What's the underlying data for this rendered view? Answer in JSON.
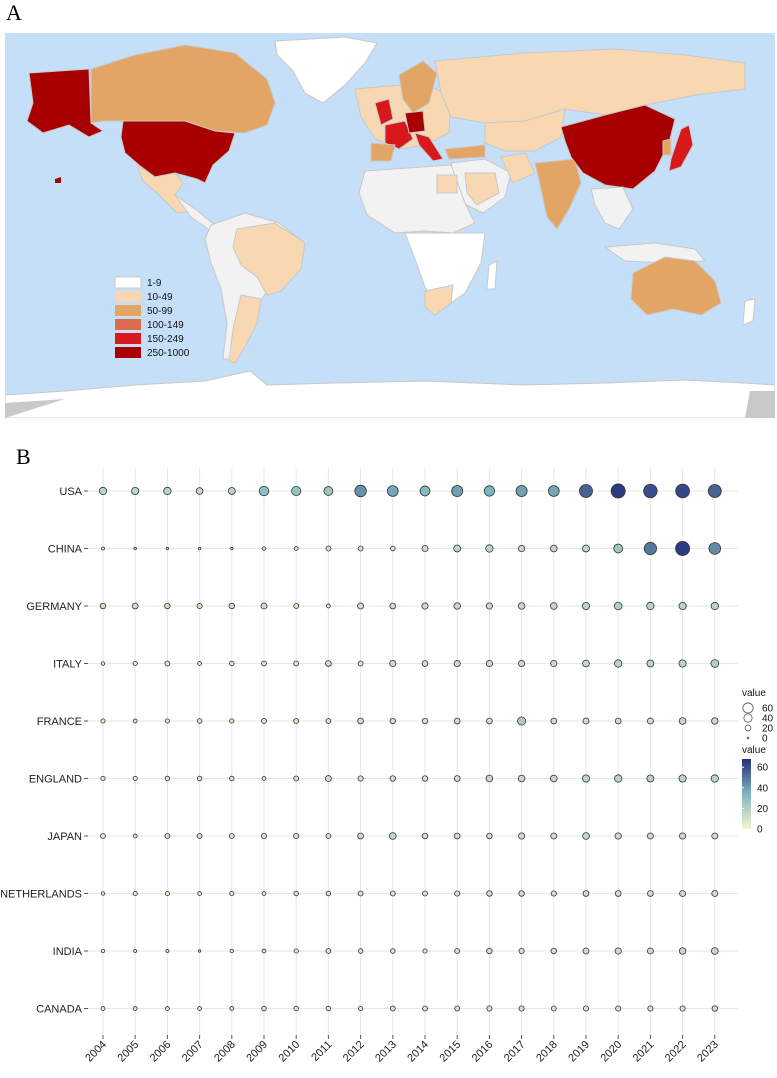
{
  "panels": {
    "a": "A",
    "b": "B"
  },
  "map": {
    "ocean_color": "#c4dff7",
    "no_data_color": "#f2f2f2",
    "border_color": "#c8c8c8",
    "antarctica_color": "#c9c9c9",
    "legend": [
      {
        "label": "1-9",
        "color": "#ffffff"
      },
      {
        "label": "10-49",
        "color": "#f7d8b2"
      },
      {
        "label": "50-99",
        "color": "#e3a566"
      },
      {
        "label": "100-149",
        "color": "#db6a4f"
      },
      {
        "label": "150-249",
        "color": "#d7191c"
      },
      {
        "label": "250-1000",
        "color": "#a80000"
      }
    ]
  },
  "chart_data": {
    "type": "scatter",
    "x": [
      "2004",
      "2005",
      "2006",
      "2007",
      "2008",
      "2009",
      "2010",
      "2011",
      "2012",
      "2013",
      "2014",
      "2015",
      "2016",
      "2017",
      "2018",
      "2019",
      "2020",
      "2021",
      "2022",
      "2023"
    ],
    "categories": [
      "USA",
      "CHINA",
      "GERMANY",
      "ITALY",
      "FRANCE",
      "ENGLAND",
      "JAPAN",
      "NETHERLANDS",
      "INDIA",
      "CANADA"
    ],
    "series": [
      {
        "name": "USA",
        "values": [
          18,
          17,
          18,
          15,
          16,
          30,
          28,
          26,
          44,
          38,
          32,
          40,
          35,
          40,
          38,
          55,
          65,
          60,
          62,
          55
        ]
      },
      {
        "name": "CHINA",
        "values": [
          3,
          2,
          1,
          2,
          1,
          4,
          5,
          8,
          8,
          7,
          12,
          16,
          18,
          13,
          15,
          16,
          26,
          50,
          65,
          45
        ]
      },
      {
        "name": "GERMANY",
        "values": [
          10,
          11,
          10,
          9,
          10,
          12,
          8,
          5,
          12,
          11,
          13,
          14,
          13,
          14,
          15,
          17,
          20,
          18,
          17,
          18
        ]
      },
      {
        "name": "ITALY",
        "values": [
          4,
          6,
          8,
          5,
          7,
          8,
          8,
          11,
          8,
          13,
          11,
          13,
          13,
          13,
          13,
          15,
          18,
          16,
          17,
          20
        ]
      },
      {
        "name": "FRANCE",
        "values": [
          6,
          5,
          6,
          7,
          6,
          8,
          8,
          8,
          11,
          10,
          10,
          11,
          11,
          22,
          11,
          12,
          11,
          12,
          15,
          14
        ]
      },
      {
        "name": "ENGLAND",
        "values": [
          6,
          6,
          7,
          7,
          7,
          5,
          8,
          12,
          9,
          10,
          10,
          11,
          15,
          15,
          15,
          17,
          18,
          16,
          17,
          18
        ]
      },
      {
        "name": "JAPAN",
        "values": [
          8,
          5,
          8,
          8,
          8,
          9,
          9,
          8,
          11,
          15,
          10,
          11,
          10,
          13,
          12,
          15,
          13,
          12,
          13,
          12
        ]
      },
      {
        "name": "NETHERLANDS",
        "values": [
          4,
          6,
          6,
          5,
          6,
          5,
          7,
          7,
          8,
          8,
          8,
          9,
          10,
          10,
          9,
          11,
          11,
          11,
          12,
          12
        ]
      },
      {
        "name": "INDIA",
        "values": [
          4,
          3,
          3,
          1,
          4,
          5,
          6,
          8,
          7,
          7,
          6,
          8,
          10,
          9,
          10,
          12,
          13,
          12,
          14,
          15
        ]
      },
      {
        "name": "CANADA",
        "values": [
          5,
          5,
          5,
          5,
          5,
          7,
          7,
          7,
          6,
          8,
          8,
          8,
          9,
          9,
          8,
          9,
          9,
          9,
          9,
          10
        ]
      }
    ],
    "size_legend": {
      "title": "value",
      "breaks": [
        60,
        40,
        20,
        0
      ]
    },
    "color_legend": {
      "title": "value",
      "ticks": [
        60,
        40,
        20,
        0
      ],
      "low": "#f5f3cf",
      "mid": "#7fb8bf",
      "high": "#252f7a",
      "max": 68
    },
    "grid": true
  }
}
